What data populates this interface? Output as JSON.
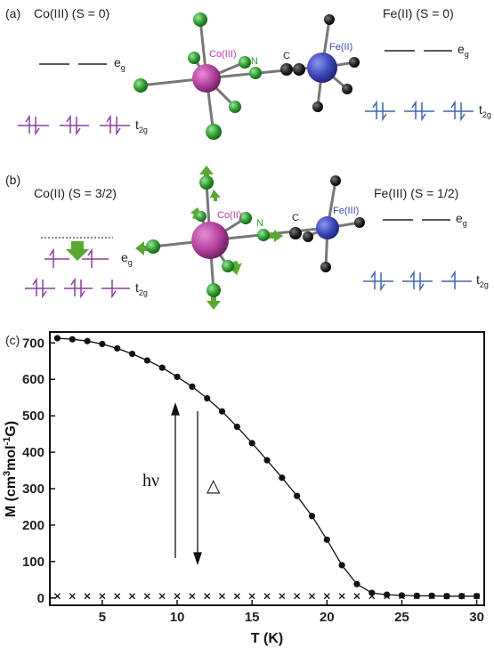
{
  "panel_a": {
    "label": "(a)",
    "co_state": "Co(III) (S = 0)",
    "fe_state": "Fe(II) (S = 0)",
    "eg": "e",
    "eg_sub": "g",
    "t2g": "t",
    "t2g_sub": "2g",
    "co_atom": "Co(III)",
    "fe_atom": "Fe(II)",
    "n_atom": "N",
    "c_atom": "C"
  },
  "panel_b": {
    "label": "(b)",
    "co_state": "Co(II) (S = 3/2)",
    "fe_state": "Fe(III) (S = 1/2)",
    "eg": "e",
    "eg_sub": "g",
    "t2g": "t",
    "t2g_sub": "2g",
    "co_atom": "Co(II)",
    "fe_atom": "Fe(III)",
    "n_atom": "N",
    "c_atom": "C"
  },
  "colors": {
    "cobalt": "#b0409a",
    "iron": "#3b46b8",
    "nitrogen": "#2e9a2e",
    "carbon": "#222222",
    "co_levels": "#8a3fa0",
    "fe_levels": "#3e64b0",
    "arrow_green": "#5aa832"
  },
  "panel_c": {
    "label": "(c)",
    "annotation_light": "hν",
    "annotation_heat": "△",
    "chart_data": {
      "type": "scatter",
      "xlabel": "T (K)",
      "ylabel_pre": "M (cm",
      "ylabel_sup1": "3",
      "ylabel_mid": "mol",
      "ylabel_sup2": "-1",
      "ylabel_post": "G)",
      "xlim": [
        1.5,
        30.5
      ],
      "ylim": [
        -20,
        730
      ],
      "xticks": [
        5,
        10,
        15,
        20,
        25,
        30
      ],
      "yticks": [
        0,
        100,
        200,
        300,
        400,
        500,
        600,
        700
      ],
      "series": [
        {
          "marker": "circle",
          "x": [
            2,
            3,
            4,
            5,
            6,
            7,
            8,
            9,
            10,
            11,
            12,
            13,
            14,
            15,
            16,
            17,
            18,
            19,
            20,
            21,
            22,
            23,
            24,
            25,
            26,
            27,
            28,
            29,
            30
          ],
          "y": [
            713,
            710,
            705,
            697,
            685,
            670,
            652,
            632,
            607,
            580,
            548,
            512,
            470,
            425,
            378,
            330,
            280,
            225,
            160,
            90,
            38,
            14,
            9,
            7,
            6,
            6,
            5,
            5,
            5
          ]
        },
        {
          "marker": "cross",
          "x": [
            2,
            3,
            4,
            5,
            6,
            7,
            8,
            9,
            10,
            11,
            12,
            13,
            14,
            15,
            16,
            17,
            18,
            19,
            20,
            21,
            22,
            23,
            24,
            25,
            26,
            27,
            28,
            29,
            30
          ],
          "y": [
            5,
            5,
            5,
            5,
            5,
            5,
            5,
            5,
            5,
            5,
            5,
            5,
            5,
            5,
            5,
            5,
            5,
            5,
            5,
            5,
            5,
            5,
            5,
            5,
            5,
            5,
            5,
            5,
            5
          ]
        }
      ]
    }
  }
}
